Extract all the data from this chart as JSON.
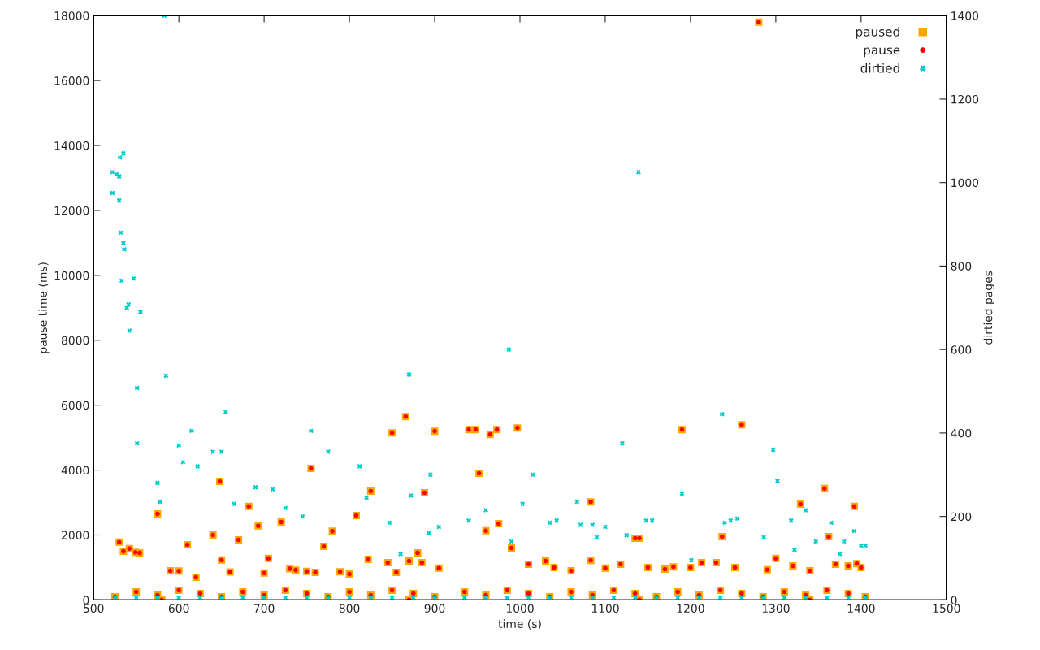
{
  "chart_data": {
    "type": "scatter",
    "xlabel": "time (s)",
    "ylabel": "pause time (ms)",
    "y2label": "dirtied pages",
    "xlim": [
      500,
      1500
    ],
    "xticks": [
      500,
      600,
      700,
      800,
      900,
      1000,
      1100,
      1200,
      1300,
      1400,
      1500
    ],
    "ylim": [
      0,
      18000
    ],
    "yticks": [
      0,
      2000,
      4000,
      6000,
      8000,
      10000,
      12000,
      14000,
      16000,
      18000
    ],
    "y2lim": [
      0,
      1400
    ],
    "y2ticks": [
      0,
      200,
      400,
      600,
      800,
      1000,
      1200,
      1400
    ],
    "legend": "top right",
    "grid": false,
    "series": [
      {
        "name": "paused",
        "color": "#ffa500",
        "marker": "square",
        "x": [
          1280,
          866,
          850,
          900,
          940,
          948,
          965,
          973,
          997,
          1190,
          1260,
          755,
          952,
          648,
          825,
          888,
          1083,
          1329,
          1357,
          575,
          682,
          808,
          975,
          1392,
          1237,
          1362,
          530,
          535,
          542,
          549,
          554,
          640,
          670,
          720,
          770,
          780,
          800,
          960,
          990,
          1140,
          1135,
          1300,
          1030,
          1083,
          1213,
          1230,
          870,
          880,
          885,
          822,
          845,
          650,
          610,
          693,
          705,
          737,
          760,
          789,
          1100,
          1150,
          1170,
          1200,
          1252,
          1320,
          1385,
          1400,
          590,
          600,
          620,
          660,
          700,
          730,
          750,
          855,
          905,
          1010,
          1040,
          1060,
          1118,
          1180,
          1290,
          1340,
          1370,
          1395,
          525,
          550,
          575,
          600,
          625,
          650,
          675,
          700,
          725,
          750,
          775,
          800,
          825,
          850,
          875,
          900,
          935,
          960,
          985,
          1010,
          1035,
          1060,
          1085,
          1110,
          1135,
          1160,
          1185,
          1210,
          1235,
          1260,
          1285,
          1310,
          1335,
          1360,
          1385,
          1405,
          580,
          870,
          1140,
          1340
        ],
        "values": [
          17800,
          5650,
          5150,
          5200,
          5250,
          5250,
          5100,
          5250,
          5300,
          5250,
          5400,
          4050,
          3900,
          3650,
          3350,
          3300,
          3020,
          2950,
          3430,
          2650,
          2880,
          2600,
          2350,
          2880,
          1950,
          1950,
          1780,
          1500,
          1580,
          1470,
          1450,
          2000,
          1850,
          2400,
          1650,
          2120,
          800,
          2130,
          1600,
          1900,
          1900,
          1280,
          1200,
          1220,
          1150,
          1150,
          1200,
          1450,
          1150,
          1250,
          1150,
          1230,
          1700,
          2280,
          1280,
          920,
          850,
          870,
          980,
          1000,
          950,
          1000,
          1000,
          1050,
          1050,
          1000,
          900,
          890,
          700,
          860,
          830,
          960,
          880,
          850,
          980,
          1100,
          1000,
          900,
          1100,
          1020,
          930,
          900,
          1100,
          1120,
          100,
          250,
          150,
          300,
          200,
          100,
          250,
          150,
          300,
          200,
          100,
          250,
          150,
          300,
          200,
          100,
          250,
          150,
          300,
          200,
          100,
          250,
          150,
          300,
          200,
          100,
          250,
          150,
          300,
          200,
          100,
          250,
          150,
          300,
          200,
          100,
          0,
          0,
          0,
          0
        ]
      },
      {
        "name": "pause",
        "color": "#ff0000",
        "marker": "circle",
        "x": [
          1280,
          866,
          850,
          900,
          940,
          948,
          965,
          973,
          997,
          1190,
          1260,
          755,
          952,
          648,
          825,
          888,
          1083,
          1329,
          1357,
          575,
          682,
          808,
          975,
          1392,
          1237,
          1362,
          530,
          535,
          542,
          549,
          554,
          640,
          670,
          720,
          770,
          780,
          800,
          960,
          990,
          1140,
          1135,
          1300,
          1030,
          1083,
          1213,
          1230,
          870,
          880,
          885,
          822,
          845,
          650,
          610,
          693,
          705,
          737,
          760,
          789,
          1100,
          1150,
          1170,
          1200,
          1252,
          1320,
          1385,
          1400,
          590,
          600,
          620,
          660,
          700,
          730,
          750,
          855,
          905,
          1010,
          1040,
          1060,
          1118,
          1180,
          1290,
          1340,
          1370,
          1395,
          525,
          550,
          575,
          600,
          625,
          650,
          675,
          700,
          725,
          750,
          775,
          800,
          825,
          850,
          875,
          900,
          935,
          960,
          985,
          1010,
          1035,
          1060,
          1085,
          1110,
          1135,
          1160,
          1185,
          1210,
          1235,
          1260,
          1285,
          1310,
          1335,
          1360,
          1385,
          1405,
          580,
          870,
          1140,
          1340
        ],
        "values": [
          17800,
          5650,
          5150,
          5200,
          5250,
          5250,
          5100,
          5250,
          5300,
          5250,
          5400,
          4050,
          3900,
          3650,
          3350,
          3300,
          3020,
          2950,
          3430,
          2650,
          2880,
          2600,
          2350,
          2880,
          1950,
          1950,
          1780,
          1500,
          1580,
          1470,
          1450,
          2000,
          1850,
          2400,
          1650,
          2120,
          800,
          2130,
          1600,
          1900,
          1900,
          1280,
          1200,
          1220,
          1150,
          1150,
          1200,
          1450,
          1150,
          1250,
          1150,
          1230,
          1700,
          2280,
          1280,
          920,
          850,
          870,
          980,
          1000,
          950,
          1000,
          1000,
          1050,
          1050,
          1000,
          900,
          890,
          700,
          860,
          830,
          960,
          880,
          850,
          980,
          1100,
          1000,
          900,
          1100,
          1020,
          930,
          900,
          1100,
          1120,
          100,
          250,
          150,
          300,
          200,
          100,
          250,
          150,
          300,
          200,
          100,
          250,
          150,
          300,
          200,
          100,
          250,
          150,
          300,
          200,
          100,
          250,
          150,
          300,
          200,
          100,
          250,
          150,
          300,
          200,
          100,
          250,
          150,
          300,
          200,
          100,
          0,
          0,
          0,
          0
        ]
      },
      {
        "name": "dirtied",
        "color": "#00cccc",
        "marker": "cross",
        "axis": "y2",
        "x": [
          522,
          527,
          522,
          530,
          531,
          535,
          530,
          532,
          535,
          536,
          533,
          539,
          541,
          542,
          547,
          555,
          551,
          551,
          585,
          583,
          575,
          578,
          600,
          605,
          615,
          622,
          640,
          655,
          650,
          665,
          690,
          710,
          725,
          745,
          755,
          775,
          812,
          820,
          847,
          860,
          870,
          872,
          893,
          895,
          905,
          940,
          960,
          987,
          990,
          1003,
          1015,
          1035,
          1043,
          1067,
          1071,
          1085,
          1090,
          1100,
          1120,
          1125,
          1139,
          1148,
          1155,
          1190,
          1201,
          1237,
          1240,
          1247,
          1255,
          1286,
          1297,
          1302,
          1318,
          1322,
          1335,
          1347,
          1365,
          1375,
          1380,
          1392,
          1400,
          1405,
          525,
          550,
          575,
          600,
          625,
          650,
          675,
          700,
          725,
          750,
          775,
          800,
          825,
          850,
          875,
          900,
          935,
          960,
          985,
          1010,
          1035,
          1060,
          1085,
          1110,
          1135,
          1160,
          1185,
          1210,
          1235,
          1260,
          1285,
          1310,
          1335,
          1360,
          1385,
          1405
        ],
        "values": [
          1025,
          1020,
          975,
          1015,
          1060,
          1070,
          957,
          880,
          855,
          840,
          765,
          700,
          708,
          645,
          770,
          690,
          508,
          375,
          537,
          1400,
          280,
          235,
          370,
          330,
          405,
          320,
          355,
          450,
          355,
          230,
          270,
          265,
          220,
          200,
          405,
          355,
          320,
          245,
          185,
          110,
          540,
          250,
          160,
          300,
          175,
          190,
          215,
          600,
          140,
          230,
          300,
          185,
          190,
          235,
          180,
          180,
          150,
          175,
          375,
          155,
          1025,
          190,
          190,
          255,
          95,
          445,
          185,
          190,
          195,
          150,
          360,
          285,
          190,
          120,
          215,
          140,
          185,
          110,
          140,
          165,
          130,
          130,
          5,
          5,
          5,
          5,
          5,
          5,
          5,
          5,
          5,
          5,
          5,
          5,
          5,
          5,
          5,
          5,
          5,
          5,
          5,
          5,
          5,
          5,
          5,
          5,
          5,
          5,
          5,
          5,
          5,
          5,
          5,
          5,
          5,
          5,
          5,
          5
        ]
      }
    ]
  }
}
